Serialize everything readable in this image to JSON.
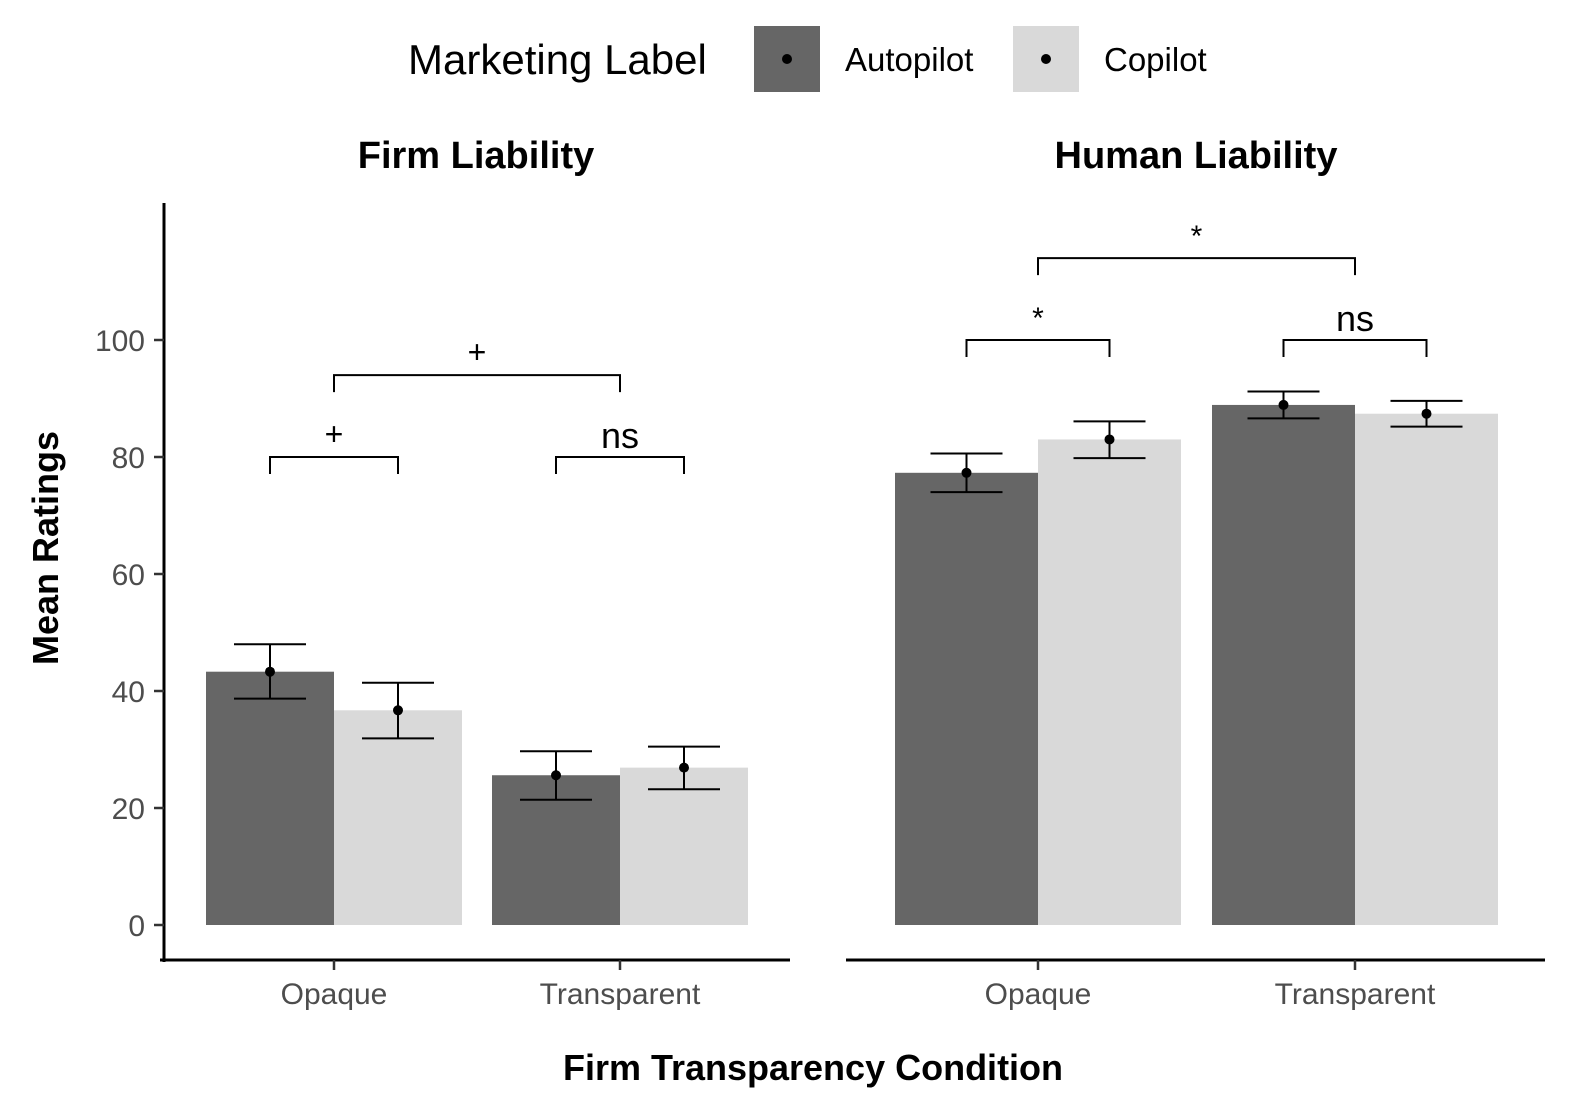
{
  "chart_data": {
    "type": "bar",
    "legend": {
      "title": "Marketing Label",
      "position": "top",
      "entries": [
        {
          "name": "Autopilot",
          "color": "#666666"
        },
        {
          "name": "Copilot",
          "color": "#d9d9d9"
        }
      ]
    },
    "xlabel": "Firm Transparency Condition",
    "ylabel": "Mean Ratings",
    "ylim": [
      0,
      120
    ],
    "yticks": [
      "0",
      "20",
      "40",
      "60",
      "80",
      "100"
    ],
    "grid": false,
    "categories": [
      "Opaque",
      "Transparent"
    ],
    "facets": [
      {
        "title": "Firm Liability",
        "series": [
          {
            "name": "Autopilot",
            "values": [
              43.3,
              25.6
            ],
            "error_low": [
              38.7,
              21.4
            ],
            "error_high": [
              48.0,
              29.7
            ]
          },
          {
            "name": "Copilot",
            "values": [
              36.7,
              26.9
            ],
            "error_low": [
              31.9,
              23.2
            ],
            "error_high": [
              41.4,
              30.5
            ]
          }
        ],
        "annotations": [
          {
            "label": "+",
            "from": "Opaque|Autopilot",
            "to": "Opaque|Copilot",
            "y": 80
          },
          {
            "label": "ns",
            "from": "Transparent|Autopilot",
            "to": "Transparent|Copilot",
            "y": 80
          },
          {
            "label": "+",
            "from": "Opaque",
            "to": "Transparent",
            "y": 94
          }
        ]
      },
      {
        "title": "Human Liability",
        "series": [
          {
            "name": "Autopilot",
            "values": [
              77.3,
              88.9
            ],
            "error_low": [
              74.0,
              86.6
            ],
            "error_high": [
              80.6,
              91.2
            ]
          },
          {
            "name": "Copilot",
            "values": [
              83.0,
              87.4
            ],
            "error_low": [
              79.8,
              85.2
            ],
            "error_high": [
              86.1,
              89.6
            ]
          }
        ],
        "annotations": [
          {
            "label": "*",
            "from": "Opaque|Autopilot",
            "to": "Opaque|Copilot",
            "y": 100
          },
          {
            "label": "ns",
            "from": "Transparent|Autopilot",
            "to": "Transparent|Copilot",
            "y": 100
          },
          {
            "label": "*",
            "from": "Opaque",
            "to": "Transparent",
            "y": 114
          }
        ]
      }
    ]
  }
}
